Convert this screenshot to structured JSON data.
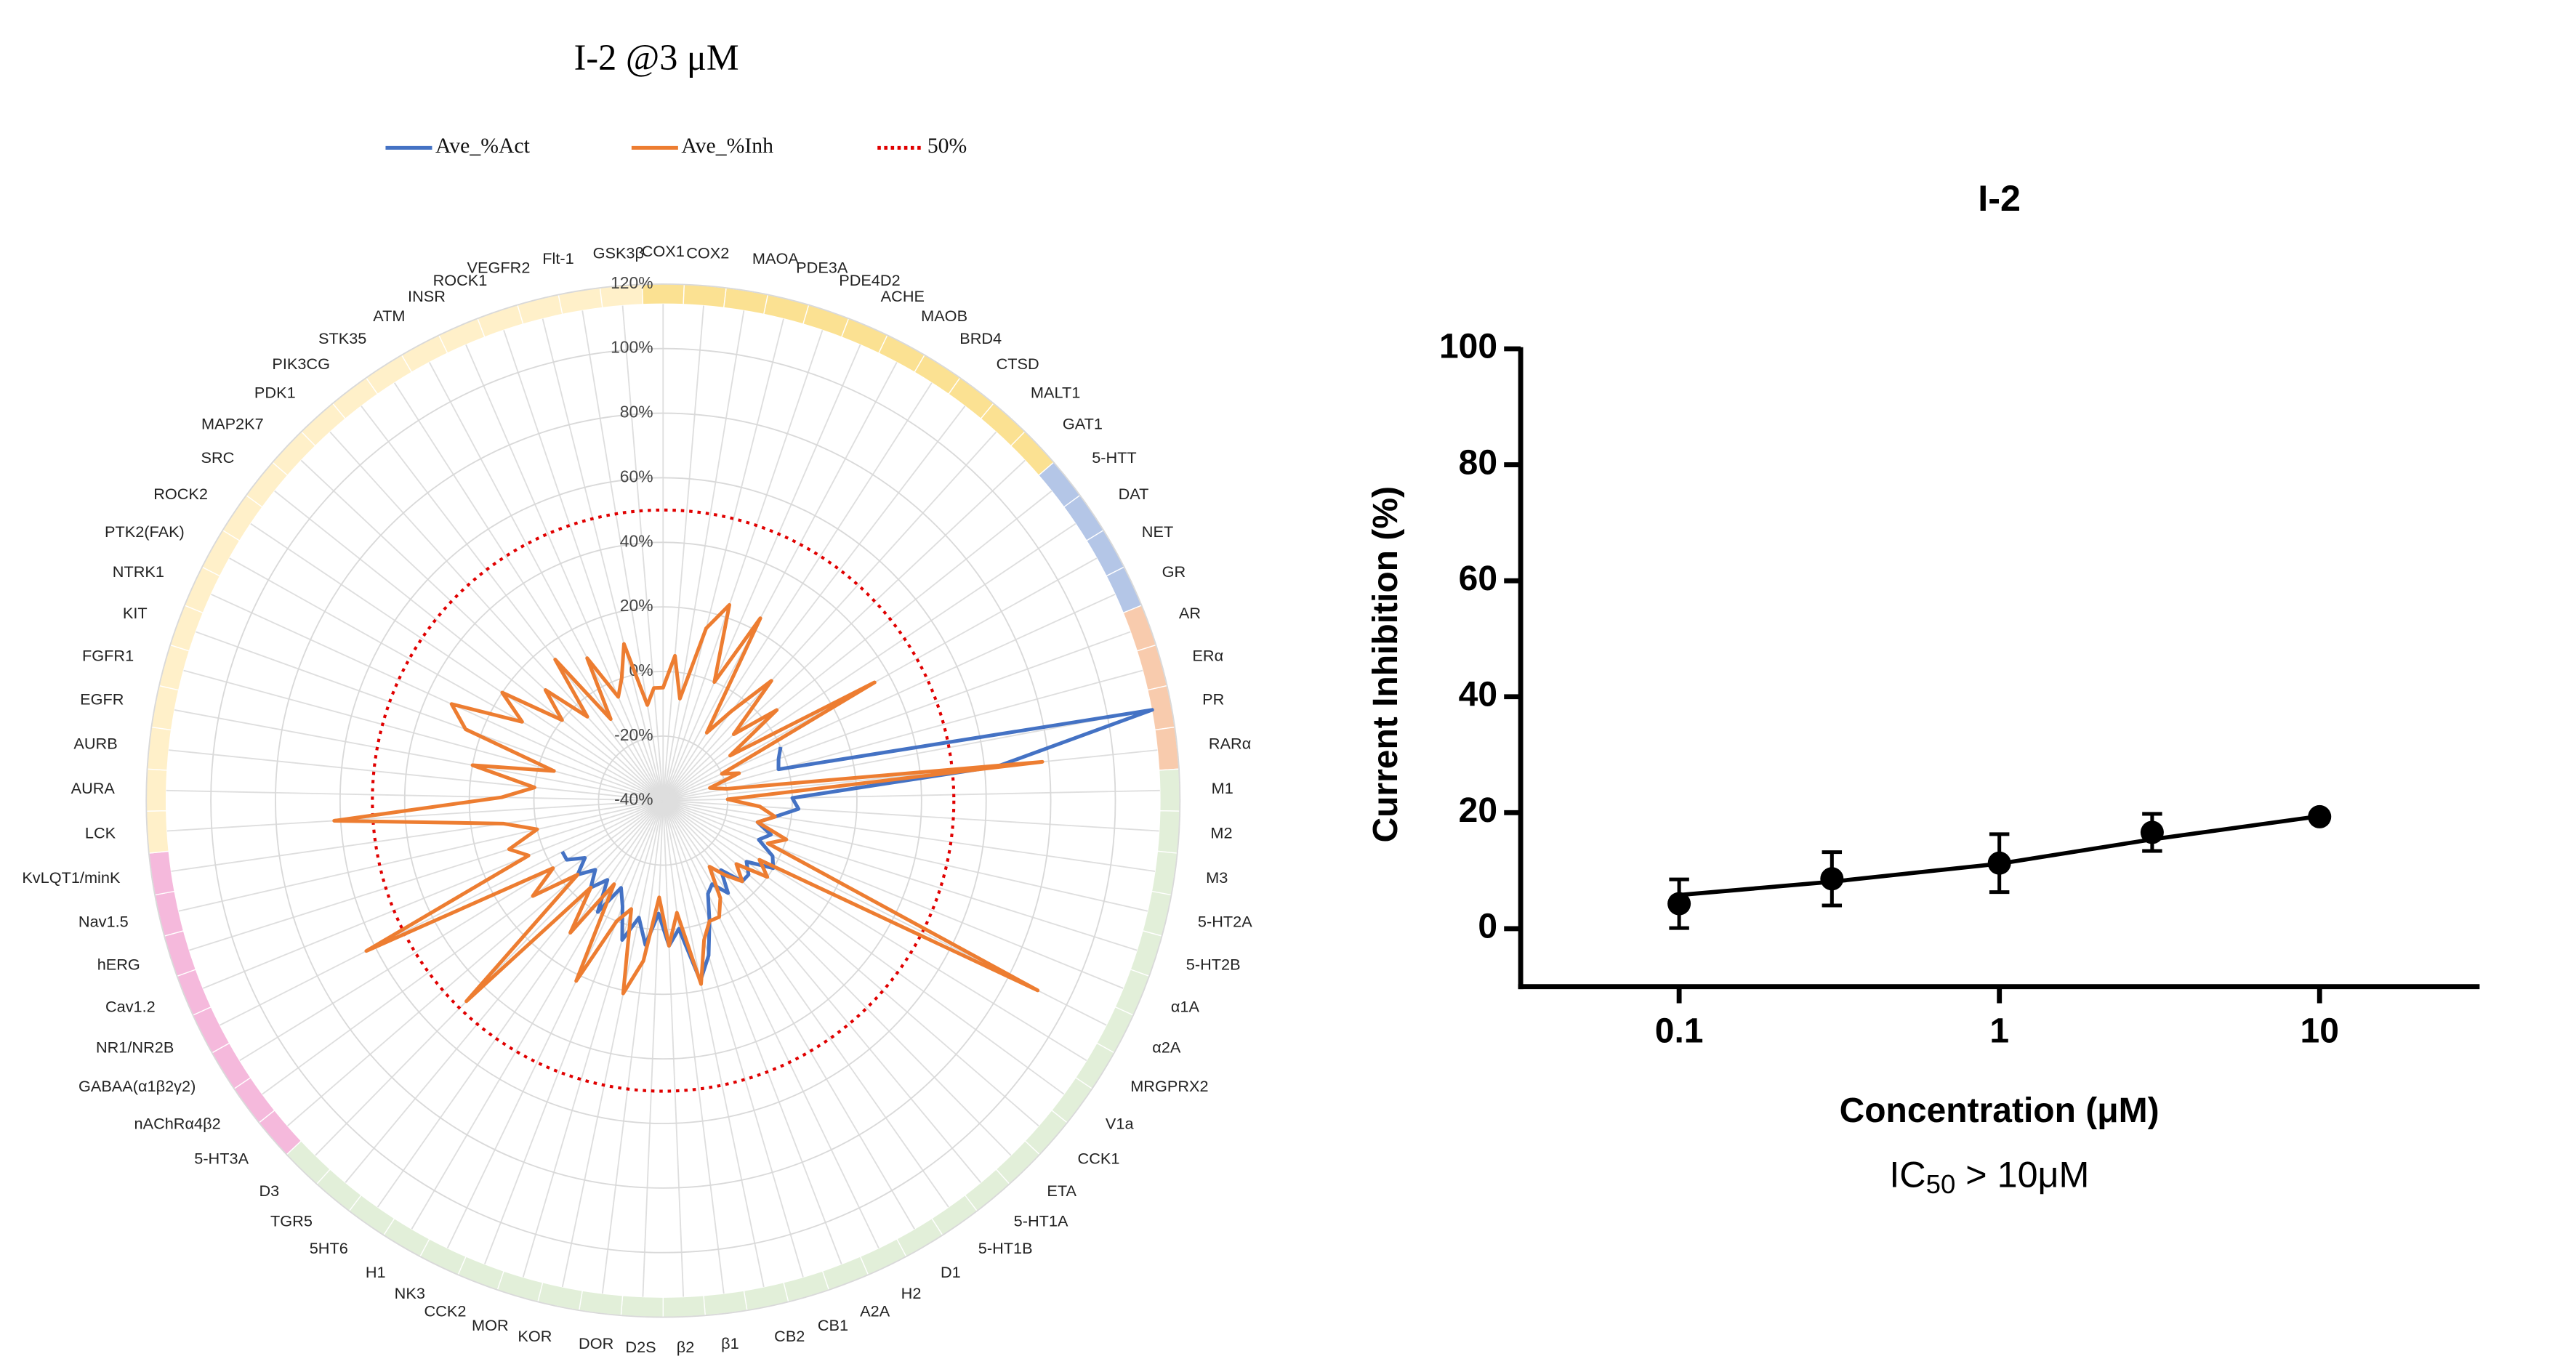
{
  "chart_data": [
    {
      "type": "radar",
      "title": "I-2 @3 μM",
      "categories": [
        "COX1",
        "COX2",
        "MAOA",
        "PDE3A",
        "PDE4D2",
        "ACHE",
        "MAOB",
        "BRD4",
        "CTSD",
        "MALT1",
        "GAT1",
        "5-HTT",
        "DAT",
        "NET",
        "GR",
        "AR",
        "ERα",
        "PR",
        "RARα",
        "M1",
        "M2",
        "M3",
        "5-HT2A",
        "5-HT2B",
        "α1A",
        "α2A",
        "MRGPRX2",
        "V1a",
        "CCK1",
        "ETA",
        "5-HT1A",
        "5-HT1B",
        "D1",
        "H2",
        "A2A",
        "CB1",
        "CB2",
        "β1",
        "β2",
        "D2S",
        "DOR",
        "KOR",
        "MOR",
        "CCK2",
        "NK3",
        "H1",
        "5HT6",
        "TGR5",
        "D3",
        "5-HT3A",
        "nAChRα4β2",
        "GABAA(α1β2γ2)",
        "NR1/NR2B",
        "Cav1.2",
        "hERG",
        "Nav1.5",
        "KvLQT1/minK",
        "LCK",
        "AURA",
        "AURB",
        "EGFR",
        "FGFR1",
        "KIT",
        "NTRK1",
        "PTK2(FAK)",
        "ROCK2",
        "SRC",
        "MAP2K7",
        "PDK1",
        "PIK3CG",
        "STK35",
        "ATM",
        "INSR",
        "ROCK1",
        "VEGFR2",
        "Flt-1",
        "GSK3β"
      ],
      "series": [
        {
          "name": "Ave_%Act",
          "color": "#4472c4",
          "values": [
            null,
            null,
            null,
            null,
            null,
            null,
            null,
            null,
            null,
            null,
            null,
            null,
            null,
            null,
            0,
            -2,
            -3,
            114,
            64,
            0,
            2,
            -5,
            -10,
            -5,
            -8,
            -2,
            0,
            -8,
            -5,
            -5,
            -12,
            -5,
            -10,
            -8,
            0,
            10,
            17,
            0,
            5,
            -5,
            5,
            -3,
            5,
            -5,
            -10,
            0,
            -10,
            -5,
            -10,
            -5,
            -10,
            -5,
            -5,
            null,
            null,
            null,
            null,
            null,
            null,
            null,
            null,
            null,
            null,
            null,
            null,
            null,
            null,
            null,
            null,
            null,
            null,
            null,
            null,
            null,
            null,
            null,
            null
          ]
        },
        {
          "name": "Ave_%Inh",
          "color": "#ed7d31",
          "values": [
            -5,
            5,
            -8,
            15,
            24,
            0,
            24,
            -15,
            -5,
            10,
            -10,
            5,
            -15,
            35,
            -20,
            -15,
            -25,
            -20,
            78,
            -20,
            -10,
            -5,
            -10,
            0,
            -5,
            90,
            -5,
            0,
            -10,
            -5,
            -10,
            -15,
            -5,
            0,
            0,
            5,
            18,
            -5,
            5,
            -10,
            10,
            21,
            -5,
            0,
            22,
            -10,
            10,
            -5,
            47,
            -5,
            10,
            0,
            63,
            5,
            10,
            0,
            10,
            62,
            10,
            0,
            20,
            -5,
            25,
            32,
            10,
            20,
            0,
            10,
            -5,
            15,
            -10,
            10,
            -5,
            0,
            10,
            -10,
            -5
          ]
        }
      ],
      "reference": {
        "name": "50%",
        "value": 50,
        "color": "#e00000"
      },
      "rlim": [
        -40,
        120
      ],
      "rticks": [
        {
          "value": -40,
          "label": "-40%"
        },
        {
          "value": -20,
          "label": "-20%"
        },
        {
          "value": 0,
          "label": "0%"
        },
        {
          "value": 20,
          "label": "20%"
        },
        {
          "value": 40,
          "label": "40%"
        },
        {
          "value": 60,
          "label": "60%"
        },
        {
          "value": 80,
          "label": "80%"
        },
        {
          "value": 100,
          "label": "100%"
        },
        {
          "value": 120,
          "label": "120%"
        }
      ],
      "sector_colors": [
        "#fbe192",
        "#fbe192",
        "#fbe192",
        "#fbe192",
        "#fbe192",
        "#fbe192",
        "#fbe192",
        "#fbe192",
        "#fbe192",
        "#fbe192",
        "#fbe192",
        "#b4c6e7",
        "#b4c6e7",
        "#b4c6e7",
        "#b4c6e7",
        "#f8cbad",
        "#f8cbad",
        "#f8cbad",
        "#f8cbad",
        "#e2efd9",
        "#e2efd9",
        "#e2efd9",
        "#e2efd9",
        "#e2efd9",
        "#e2efd9",
        "#e2efd9",
        "#e2efd9",
        "#e2efd9",
        "#e2efd9",
        "#e2efd9",
        "#e2efd9",
        "#e2efd9",
        "#e2efd9",
        "#e2efd9",
        "#e2efd9",
        "#e2efd9",
        "#e2efd9",
        "#e2efd9",
        "#e2efd9",
        "#e2efd9",
        "#e2efd9",
        "#e2efd9",
        "#e2efd9",
        "#e2efd9",
        "#e2efd9",
        "#e2efd9",
        "#e2efd9",
        "#e2efd9",
        "#e2efd9",
        "#f5b9dc",
        "#f5b9dc",
        "#f5b9dc",
        "#f5b9dc",
        "#f5b9dc",
        "#f5b9dc",
        "#f5b9dc",
        "#f5b9dc",
        "#fff0c9",
        "#fff0c9",
        "#fff0c9",
        "#fff0c9",
        "#fff0c9",
        "#fff0c9",
        "#fff0c9",
        "#fff0c9",
        "#fff0c9",
        "#fff0c9",
        "#fff0c9",
        "#fff0c9",
        "#fff0c9",
        "#fff0c9",
        "#fff0c9",
        "#fff0c9",
        "#fff0c9",
        "#fff0c9",
        "#fff0c9",
        "#fff0c9"
      ],
      "grid": true,
      "legend": "top"
    },
    {
      "type": "dose-response",
      "title": "I-2",
      "xlabel": "Concentration (μM)",
      "ylabel": "Current Inhibition (%)",
      "annotation": {
        "text": "IC",
        "subscript": "50",
        "suffix": " > 10μM"
      },
      "x": [
        0.1,
        0.3,
        1,
        3,
        10
      ],
      "series": [
        {
          "color": "#000000",
          "values": [
            4.3,
            8.6,
            11.3,
            16.6,
            19.3
          ],
          "errors": [
            4.2,
            4.6,
            5,
            3.2,
            0.5
          ]
        }
      ],
      "fit": {
        "x": [
          0.1,
          0.3,
          1,
          3,
          10
        ],
        "values": [
          5.8,
          8.1,
          11.2,
          15.4,
          19.4
        ]
      },
      "xscale": "log",
      "xlim": [
        0.032,
        31.6
      ],
      "xticks": [
        0.1,
        1,
        10
      ],
      "ylim": [
        -10,
        100
      ],
      "yticks": [
        0,
        20,
        40,
        60,
        80,
        100
      ]
    }
  ]
}
